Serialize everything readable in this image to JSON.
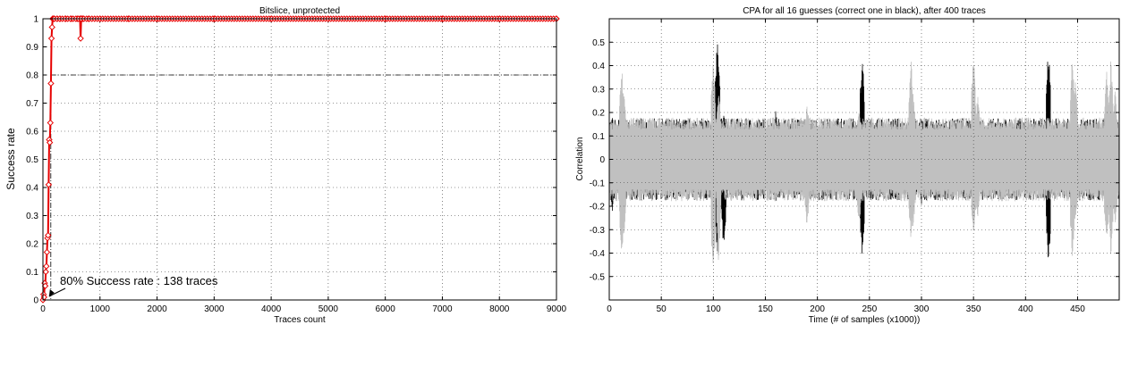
{
  "chart_data": [
    {
      "type": "line",
      "title": "Bitslice, unprotected",
      "xlabel": "Traces count",
      "ylabel": "Success rate",
      "xlim": [
        0,
        9000
      ],
      "ylim": [
        0,
        1
      ],
      "xticks": [
        0,
        1000,
        2000,
        3000,
        4000,
        5000,
        6000,
        7000,
        8000,
        9000
      ],
      "yticks": [
        0,
        0.1,
        0.2,
        0.3,
        0.4,
        0.5,
        0.6,
        0.7,
        0.8,
        0.9,
        1
      ],
      "grid": true,
      "color": "#e60000",
      "series": [
        {
          "x": [
            0,
            10,
            20,
            30,
            40,
            50,
            60,
            70,
            80,
            90,
            100,
            110,
            120,
            130,
            140,
            150,
            160,
            170,
            180,
            200,
            250,
            300,
            400,
            500,
            600,
            650,
            660,
            670,
            680,
            700,
            800,
            1000,
            1500,
            2000,
            3000,
            4000,
            5000,
            6000,
            7000,
            8000,
            9000
          ],
          "y": [
            0,
            0.02,
            0.01,
            0.06,
            0.05,
            0.1,
            0.12,
            0.17,
            0.22,
            0.23,
            0.41,
            0.57,
            0.56,
            0.63,
            0.77,
            0.93,
            0.97,
            1,
            1,
            1,
            1,
            1,
            1,
            1,
            1,
            1,
            0.93,
            1,
            1,
            1,
            1,
            1,
            1,
            1,
            1,
            1,
            1,
            1,
            1,
            1,
            1
          ]
        }
      ],
      "reference_line": {
        "y": 0.8,
        "x_from": 138,
        "x_to": 9000
      },
      "reference_vline": {
        "x": 138
      },
      "annotation": {
        "text": "80% Success rate : 138 traces",
        "x": 138,
        "y": 0
      }
    },
    {
      "type": "line",
      "title": "CPA for all 16 guesses (correct one in black), after 400 traces",
      "xlabel": "Time (# of samples (x1000))",
      "ylabel": "Correlation",
      "xlim": [
        0,
        490
      ],
      "ylim": [
        -0.6,
        0.6
      ],
      "xticks": [
        0,
        50,
        100,
        150,
        200,
        250,
        300,
        350,
        400,
        450
      ],
      "yticks": [
        -0.5,
        -0.4,
        -0.3,
        -0.2,
        -0.1,
        0,
        0.1,
        0.2,
        0.3,
        0.4,
        0.5
      ],
      "grid": true,
      "series": [
        {
          "color": "#000000",
          "band": [
            0.14,
            -0.14
          ],
          "peaks": [
            {
              "x": 104,
              "hi": 0.55,
              "lo": -0.45
            },
            {
              "x": 243,
              "hi": 0.47,
              "lo": -0.45
            },
            {
              "x": 422,
              "hi": 0.49,
              "lo": -0.48
            },
            {
              "x": 3,
              "hi": 0.19,
              "lo": -0.24
            },
            {
              "x": 110,
              "hi": 0.2,
              "lo": -0.4
            },
            {
              "x": 160,
              "hi": 0.21,
              "lo": -0.19
            },
            {
              "x": 300,
              "hi": 0.21,
              "lo": -0.2
            },
            {
              "x": 444,
              "hi": 0.2,
              "lo": -0.2
            },
            {
              "x": 485,
              "hi": 0.2,
              "lo": -0.24
            }
          ]
        },
        {
          "color": "#c0c0c0",
          "band": [
            0.17,
            -0.17
          ],
          "peaks": [
            {
              "x": 12,
              "hi": 0.42,
              "lo": -0.43
            },
            {
              "x": 14,
              "hi": 0.3,
              "lo": -0.35
            },
            {
              "x": 100,
              "hi": 0.44,
              "lo": -0.53
            },
            {
              "x": 105,
              "hi": 0.3,
              "lo": -0.45
            },
            {
              "x": 190,
              "hi": 0.25,
              "lo": -0.3
            },
            {
              "x": 240,
              "hi": 0.22,
              "lo": -0.3
            },
            {
              "x": 290,
              "hi": 0.44,
              "lo": -0.35
            },
            {
              "x": 292,
              "hi": 0.3,
              "lo": -0.3
            },
            {
              "x": 350,
              "hi": 0.45,
              "lo": -0.35
            },
            {
              "x": 354,
              "hi": 0.3,
              "lo": -0.28
            },
            {
              "x": 445,
              "hi": 0.45,
              "lo": -0.44
            },
            {
              "x": 448,
              "hi": 0.35,
              "lo": -0.3
            },
            {
              "x": 478,
              "hi": 0.38,
              "lo": -0.38
            },
            {
              "x": 482,
              "hi": 0.44,
              "lo": -0.43
            },
            {
              "x": 486,
              "hi": 0.3,
              "lo": -0.3
            }
          ]
        }
      ]
    }
  ]
}
